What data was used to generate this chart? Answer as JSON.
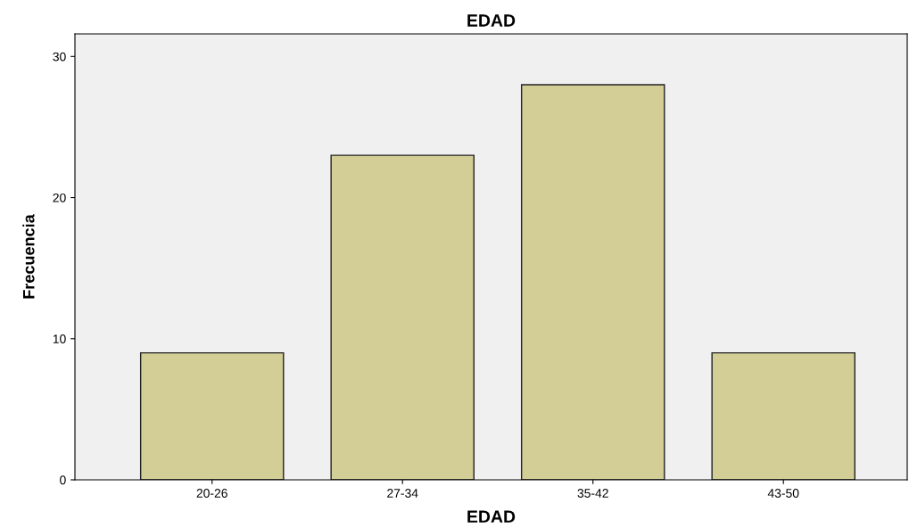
{
  "chart_data": {
    "type": "bar",
    "title": "EDAD",
    "xlabel": "EDAD",
    "ylabel": "Frecuencia",
    "categories": [
      "20-26",
      "27-34",
      "35-42",
      "43-50"
    ],
    "values": [
      9,
      23,
      28,
      9
    ],
    "color": "#d3cd96",
    "ylim": [
      0,
      31.6
    ],
    "yticks": [
      0,
      10,
      20,
      30
    ],
    "grid": false
  }
}
